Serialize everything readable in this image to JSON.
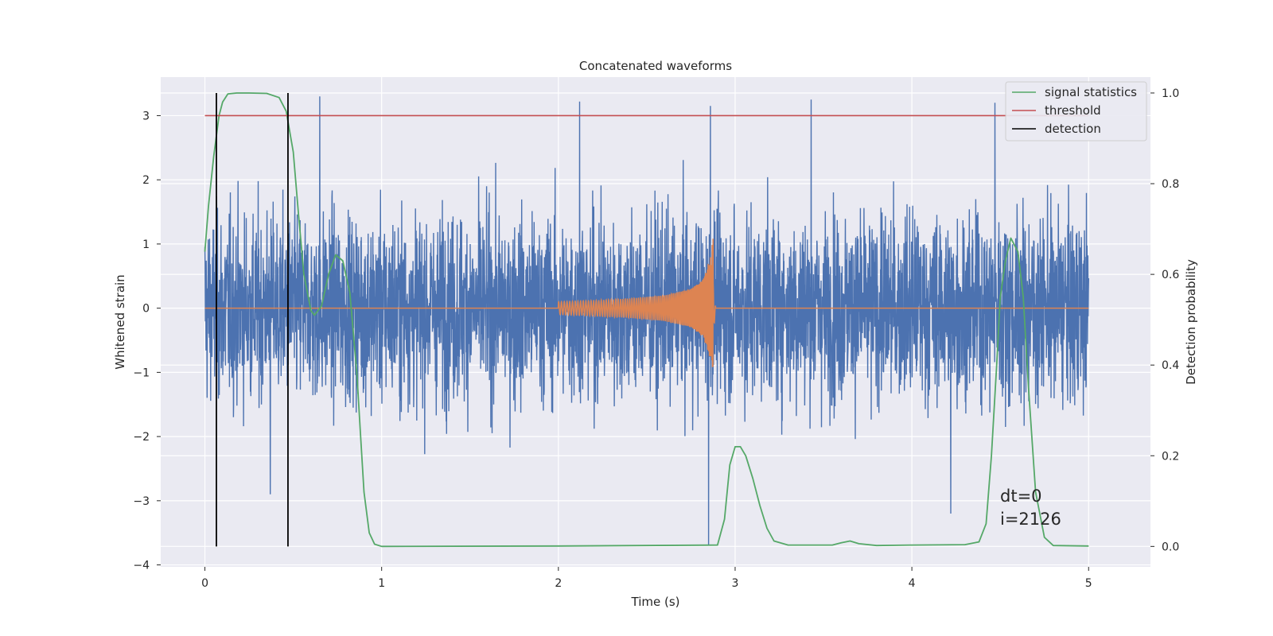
{
  "chart_data": {
    "type": "line",
    "title": "Concatenated waveforms",
    "xlabel": "Time (s)",
    "ylabel": "Whitened strain",
    "y2label": "Detection probability",
    "xlim": [
      -0.25,
      5.35
    ],
    "ylim": [
      -4.03,
      3.6
    ],
    "y2lim": [
      -0.045,
      1.035
    ],
    "xticks": [
      0,
      1,
      2,
      3,
      4,
      5
    ],
    "yticks": [
      -4,
      -3,
      -2,
      -1,
      0,
      1,
      2,
      3
    ],
    "y2ticks": [
      0.0,
      0.2,
      0.4,
      0.6,
      0.8,
      1.0
    ],
    "grid": true,
    "legend_position": "top-right",
    "colors": {
      "background": "#eaeaf2",
      "grid": "#ffffff",
      "noise": "#4c72b0",
      "template": "#dd8452",
      "signal_statistics": "#55a868",
      "threshold": "#c44e52",
      "detection": "#000000"
    },
    "series": [
      {
        "id": "noise",
        "axis": "left",
        "description_color": "#4c72b0",
        "x_range": [
          0,
          5
        ],
        "noise_std": 0.72,
        "spikes": [
          [
            0.65,
            3.3
          ],
          [
            2.12,
            3.22
          ],
          [
            2.85,
            -3.7
          ],
          [
            2.86,
            3.15
          ],
          [
            3.43,
            3.25
          ],
          [
            4.47,
            3.2
          ],
          [
            4.22,
            -3.2
          ],
          [
            0.37,
            -2.9
          ]
        ]
      },
      {
        "id": "template",
        "axis": "left",
        "description_color": "#dd8452",
        "x": [
          0,
          2,
          2.2,
          2.4,
          2.6,
          2.75,
          2.82,
          2.86,
          2.875,
          2.89,
          5
        ],
        "amplitude": [
          0,
          0.1,
          0.12,
          0.15,
          0.2,
          0.3,
          0.45,
          0.8,
          1.1,
          0.05,
          0
        ]
      },
      {
        "name": "signal statistics",
        "axis": "right",
        "x": [
          0,
          0.02,
          0.05,
          0.08,
          0.1,
          0.13,
          0.18,
          0.25,
          0.35,
          0.42,
          0.46,
          0.5,
          0.53,
          0.56,
          0.6,
          0.62,
          0.66,
          0.7,
          0.74,
          0.78,
          0.82,
          0.86,
          0.88,
          0.9,
          0.93,
          0.96,
          1.0,
          2.0,
          2.9,
          2.94,
          2.97,
          3.0,
          3.03,
          3.06,
          3.1,
          3.14,
          3.18,
          3.22,
          3.3,
          3.55,
          3.6,
          3.65,
          3.7,
          3.8,
          4.0,
          4.3,
          4.38,
          4.42,
          4.45,
          4.48,
          4.5,
          4.53,
          4.56,
          4.6,
          4.63,
          4.66,
          4.7,
          4.75,
          4.8,
          5.0
        ],
        "y": [
          0.65,
          0.75,
          0.86,
          0.95,
          0.98,
          0.998,
          1.0,
          1.0,
          0.999,
          0.99,
          0.96,
          0.87,
          0.73,
          0.6,
          0.52,
          0.51,
          0.53,
          0.6,
          0.643,
          0.63,
          0.56,
          0.38,
          0.25,
          0.12,
          0.03,
          0.005,
          0.0,
          0.001,
          0.003,
          0.06,
          0.18,
          0.22,
          0.22,
          0.2,
          0.15,
          0.09,
          0.04,
          0.012,
          0.003,
          0.003,
          0.008,
          0.012,
          0.006,
          0.002,
          0.003,
          0.004,
          0.01,
          0.05,
          0.2,
          0.4,
          0.55,
          0.63,
          0.68,
          0.65,
          0.55,
          0.35,
          0.12,
          0.02,
          0.002,
          0.001
        ]
      },
      {
        "name": "threshold",
        "axis": "right",
        "x": [
          0,
          5
        ],
        "y": [
          0.95,
          0.95
        ]
      },
      {
        "name": "detection",
        "axis": "right",
        "x": [
          0.065,
          0.47
        ],
        "y": [
          0.0,
          1.0
        ]
      }
    ],
    "legend": [
      "signal statistics",
      "threshold",
      "detection"
    ],
    "annotations": [
      "dt=0",
      "i=2126"
    ]
  }
}
